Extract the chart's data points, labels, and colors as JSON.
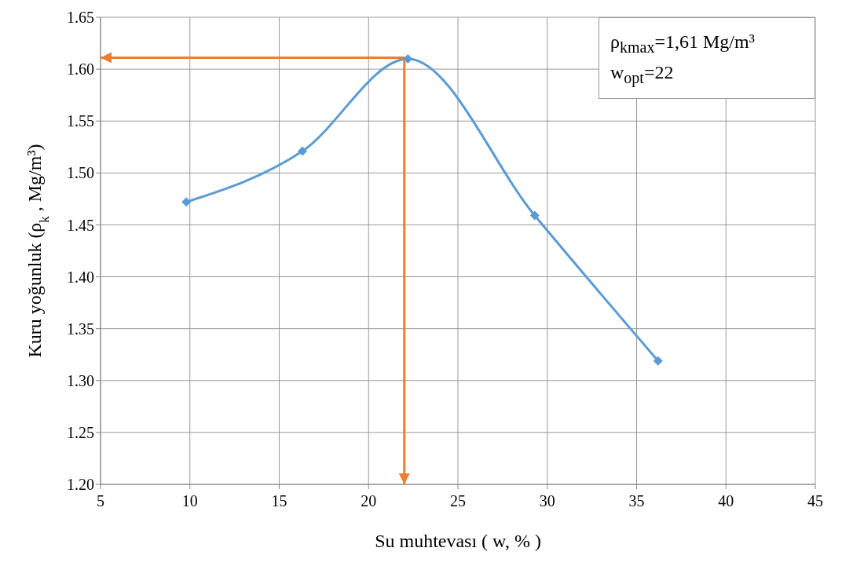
{
  "chart_data": {
    "type": "line",
    "xlabel": "Su muhtevası ( w, % )",
    "ylabel": "Kuru yoğunluk (ρ$_{k}$, Mg/m³)",
    "xlim": [
      5,
      45
    ],
    "xticks": [
      5,
      10,
      15,
      20,
      25,
      30,
      35,
      40,
      45
    ],
    "ylim": [
      1.2,
      1.65
    ],
    "yticks": [
      {
        "value": 1.2,
        "label": "1.20"
      },
      1.25,
      {
        "value": 1.3,
        "label": "1.30"
      },
      1.35,
      {
        "value": 1.4,
        "label": "1.40"
      },
      1.45,
      {
        "value": 1.5,
        "label": "1.50"
      },
      1.55,
      {
        "value": 1.6,
        "label": "1.60"
      },
      1.65
    ],
    "grid": true,
    "legend": false,
    "series": [
      {
        "color": "#5b9bd5",
        "x": [
          9.8,
          16.3,
          22.2,
          29.3,
          36.2
        ],
        "values": [
          1.472,
          1.521,
          1.61,
          1.459,
          1.319
        ],
        "marker": "diamond"
      },
      {
        "color": "#ed7d31",
        "x": [
          5,
          22,
          22
        ],
        "values": [
          1.611,
          1.611,
          1.2
        ],
        "marker": "none"
      }
    ],
    "annotations": [
      "ρ$_{kmax}$=1,61 Mg/m³",
      "w$_{opt}$=22"
    ]
  }
}
